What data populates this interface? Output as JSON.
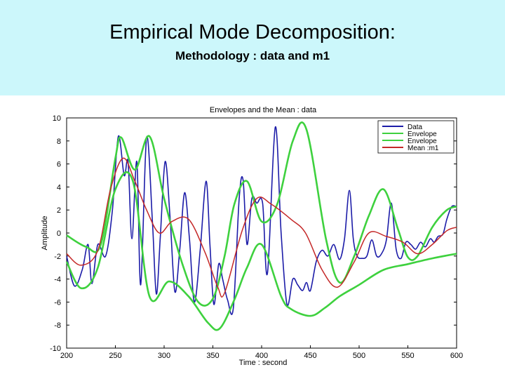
{
  "slide": {
    "title": "Empirical Mode Decomposition:",
    "subtitle": "Methodology : data and m1"
  },
  "colors": {
    "header_bg": "#ccf7fb",
    "data": "#1c1ca8",
    "envelope": "#3ed13e",
    "mean": "#c42828"
  },
  "chart_data": {
    "type": "line",
    "title": "Envelopes and the Mean : data",
    "xlabel": "Time : second",
    "ylabel": "Amplitude",
    "xlim": [
      200,
      600
    ],
    "ylim": [
      -10,
      10
    ],
    "xticks": [
      "200",
      "250",
      "300",
      "350",
      "400",
      "450",
      "500",
      "550",
      "600"
    ],
    "yticks": [
      "10",
      "8",
      "6",
      "4",
      "2",
      "0",
      "-2",
      "-4",
      "-6",
      "-8",
      "-10"
    ],
    "legend_position": "top-right",
    "series": [
      {
        "name": "Data",
        "color": "#1c1ca8",
        "x": [
          200,
          208,
          216,
          222,
          226,
          232,
          240,
          247,
          253,
          259,
          263,
          267,
          272,
          276,
          282,
          288,
          292,
          296,
          301,
          306,
          311,
          316,
          321,
          326,
          331,
          337,
          343,
          347,
          351,
          356,
          360,
          365,
          371,
          377,
          381,
          385,
          390,
          395,
          401,
          406,
          414,
          420,
          426,
          432,
          437,
          442,
          446,
          450,
          456,
          462,
          468,
          474,
          480,
          485,
          490,
          494,
          498,
          503,
          508,
          513,
          518,
          523,
          528,
          533,
          538,
          543,
          548,
          553,
          558,
          563,
          568,
          573,
          577,
          581,
          586,
          590,
          595,
          600
        ],
        "y": [
          -2,
          -4.6,
          -3.2,
          -1,
          -4.4,
          -1,
          -2,
          2,
          8.4,
          5,
          6.2,
          -0.5,
          6.2,
          -4.5,
          8.3,
          1,
          -5.3,
          -0.5,
          6.2,
          1.5,
          -5.1,
          -1.5,
          3.5,
          -0.5,
          -6,
          -1.5,
          4.5,
          -1,
          -6.2,
          -2.7,
          -4,
          -5.8,
          -6.5,
          3,
          4.6,
          -1,
          3,
          2.6,
          2.6,
          -3.5,
          9.2,
          0,
          -6.2,
          -4,
          -4.5,
          -5,
          -4.3,
          -5,
          -2.5,
          -1.5,
          -2,
          -1,
          -2.3,
          -0.5,
          3.7,
          -0.5,
          -2,
          -2.2,
          -2,
          -0.6,
          -2,
          -1.8,
          -0.6,
          2.6,
          -1.4,
          -2.2,
          -0.8,
          -1,
          -1.4,
          -0.8,
          -1.2,
          -0.5,
          -0.8,
          -0.3,
          -0.1,
          1.2,
          2.3,
          2.3
        ]
      },
      {
        "name": "Envelope",
        "color": "#3ed13e",
        "x": [
          200,
          220,
          235,
          250,
          256,
          270,
          285,
          300,
          318,
          335,
          350,
          362,
          372,
          385,
          400,
          416,
          432,
          446,
          466,
          480,
          495,
          510,
          525,
          540,
          550,
          560,
          575,
          590,
          600
        ],
        "y": [
          -0.2,
          -1.2,
          -1,
          6.5,
          8.3,
          5.5,
          8.4,
          3,
          -2.5,
          -6,
          -5.7,
          -2,
          2.5,
          4.5,
          1,
          2.5,
          8,
          9,
          -0.5,
          -4.3,
          -2,
          1.5,
          3.8,
          0.3,
          -2.1,
          -2,
          0.5,
          2,
          2.3
        ]
      },
      {
        "name": "Envelope",
        "color": "#3ed13e",
        "x": [
          200,
          215,
          232,
          250,
          268,
          285,
          305,
          325,
          345,
          357,
          372,
          385,
          400,
          420,
          430,
          450,
          465,
          480,
          500,
          525,
          550,
          575,
          600
        ],
        "y": [
          -2.5,
          -4.8,
          -3,
          3.8,
          4.5,
          -5.5,
          -4.2,
          -5.5,
          -7.8,
          -8.3,
          -5.8,
          -3,
          -1,
          -5.5,
          -6.6,
          -7.2,
          -6.5,
          -5.5,
          -4.5,
          -3.2,
          -2.7,
          -2.2,
          -1.8
        ]
      },
      {
        "name": "Mean :m1",
        "color": "#c42828",
        "x": [
          200,
          215,
          232,
          245,
          258,
          270,
          282,
          295,
          308,
          325,
          342,
          355,
          362,
          380,
          395,
          410,
          430,
          445,
          462,
          478,
          495,
          510,
          528,
          545,
          560,
          575,
          590,
          600
        ],
        "y": [
          -1.8,
          -2.8,
          -1.5,
          3.8,
          6.5,
          4.5,
          2,
          0,
          1,
          1.2,
          -1.7,
          -4.7,
          -5.2,
          0.2,
          3,
          2.5,
          1.2,
          0,
          -3.2,
          -4.7,
          -2.5,
          0,
          -0.3,
          -0.8,
          -1.8,
          -1,
          0.2,
          0.5
        ]
      }
    ]
  }
}
